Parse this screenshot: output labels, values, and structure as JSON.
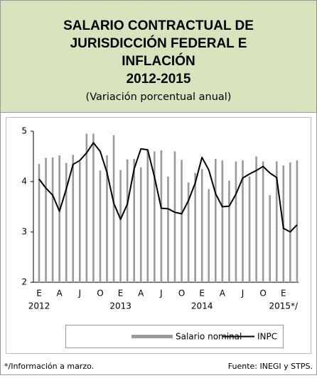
{
  "chart_data": {
    "type": "combo",
    "title": [
      "SALARIO CONTRACTUAL DE",
      "JURISDICCIÓN FEDERAL E",
      "INFLACIÓN",
      "2012-2015"
    ],
    "subtitle": "(Variación porcentual anual)",
    "categories": [
      "E",
      null,
      null,
      "A",
      null,
      null,
      "J",
      null,
      null,
      "O",
      null,
      null,
      "E",
      null,
      null,
      "A",
      null,
      null,
      "J",
      null,
      null,
      "O",
      null,
      null,
      "E",
      null,
      null,
      "A",
      null,
      null,
      "J",
      null,
      null,
      "O",
      null,
      null,
      "E",
      null,
      null
    ],
    "year_labels": [
      "2012",
      "2013",
      "2014",
      "2015*/"
    ],
    "series": [
      {
        "name": "Salario nominal",
        "type": "bar",
        "color": "#9a9a9a",
        "values": [
          4.35,
          4.47,
          4.48,
          4.52,
          4.37,
          4.53,
          4.4,
          4.95,
          4.95,
          4.22,
          4.52,
          4.92,
          4.23,
          4.44,
          4.45,
          4.28,
          4.63,
          4.6,
          4.62,
          4.1,
          4.6,
          4.43,
          3.98,
          4.17,
          4.25,
          3.85,
          4.45,
          4.42,
          4.02,
          4.4,
          4.42,
          4.1,
          4.5,
          4.4,
          3.73,
          4.4,
          4.32,
          4.38,
          4.42
        ]
      },
      {
        "name": "INPC",
        "type": "line",
        "color": "#000000",
        "values": [
          4.05,
          3.87,
          3.73,
          3.41,
          3.85,
          4.34,
          4.42,
          4.57,
          4.77,
          4.6,
          4.18,
          3.57,
          3.25,
          3.55,
          4.25,
          4.65,
          4.63,
          4.09,
          3.47,
          3.46,
          3.39,
          3.36,
          3.62,
          3.97,
          4.48,
          4.23,
          3.76,
          3.5,
          3.51,
          3.75,
          4.07,
          4.15,
          4.22,
          4.3,
          4.17,
          4.08,
          3.07,
          3.0,
          3.14
        ]
      }
    ],
    "ylim": [
      2,
      5
    ],
    "yticks": [
      2,
      3,
      4,
      5
    ],
    "notes": [
      "*/Información a marzo.",
      "Fuente: INEGI y STPS."
    ]
  }
}
